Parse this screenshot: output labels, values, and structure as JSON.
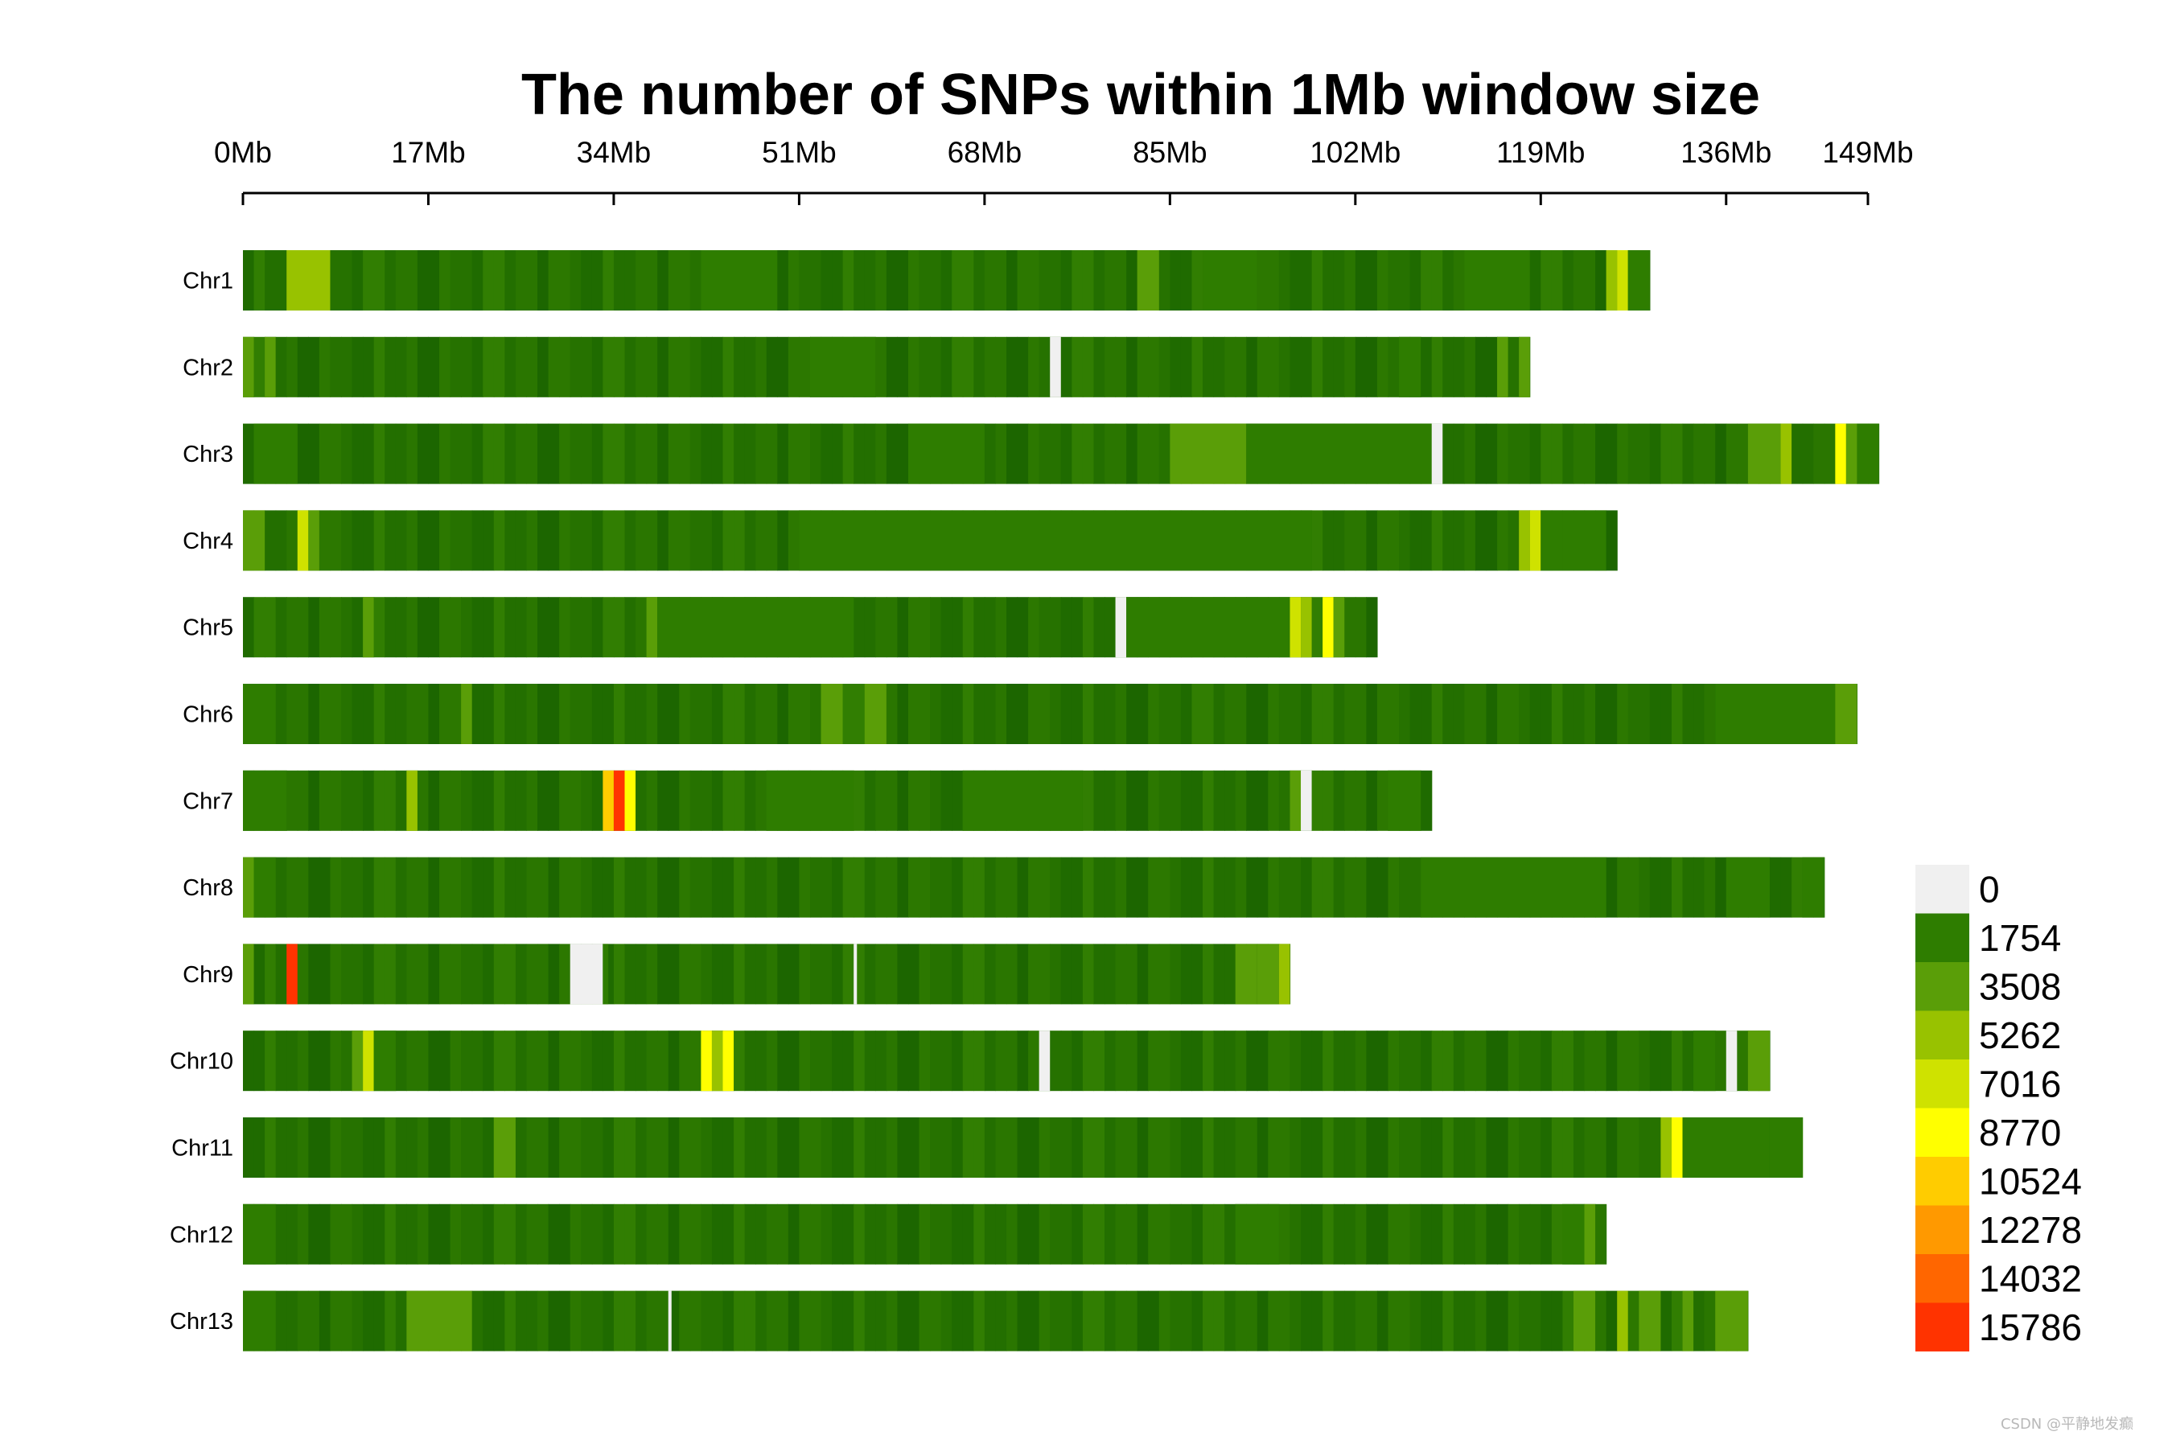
{
  "chart_data": {
    "type": "heatmap",
    "title": "The number of SNPs within 1Mb window size",
    "xlabel": "",
    "ylabel": "",
    "x_unit": "Mb",
    "x_ticks": [
      "0Mb",
      "17Mb",
      "34Mb",
      "51Mb",
      "68Mb",
      "85Mb",
      "102Mb",
      "119Mb",
      "136Mb",
      "149Mb"
    ],
    "x_tick_values": [
      0,
      17,
      34,
      51,
      68,
      85,
      102,
      119,
      136,
      149
    ],
    "xlim": [
      0,
      149
    ],
    "window_size_mb": 1,
    "legend": {
      "position": "right",
      "breaks": [
        0,
        1754,
        3508,
        5262,
        7016,
        8770,
        10524,
        12278,
        14032,
        15786
      ],
      "labels": [
        "0",
        "1754",
        "3508",
        "5262",
        "7016",
        "8770",
        "10524",
        "12278",
        "14032",
        "15786"
      ],
      "colors": [
        "#f0f0f0",
        "#2e7d00",
        "#5a9e08",
        "#98c200",
        "#cfe200",
        "#ffff00",
        "#ffcc00",
        "#ff9900",
        "#ff6600",
        "#ff3300"
      ]
    },
    "chromosomes": [
      {
        "name": "Chr1",
        "length_mb": 129,
        "segments": [
          {
            "start": 4,
            "end": 8,
            "value": 6000
          },
          {
            "start": 42,
            "end": 49,
            "value": 3000
          },
          {
            "start": 82,
            "end": 84,
            "value": 4200
          },
          {
            "start": 88,
            "end": 93,
            "value": 3300
          },
          {
            "start": 112,
            "end": 118,
            "value": 3000
          },
          {
            "start": 125,
            "end": 126,
            "value": 5400
          },
          {
            "start": 126,
            "end": 127,
            "value": 7500
          },
          {
            "start": 127,
            "end": 129,
            "value": 3300
          }
        ]
      },
      {
        "name": "Chr2",
        "length_mb": 118,
        "segments": [
          {
            "start": 0,
            "end": 1,
            "value": 4200
          },
          {
            "start": 2,
            "end": 3,
            "value": 3800
          },
          {
            "start": 52,
            "end": 58,
            "value": 2800
          },
          {
            "start": 74,
            "end": 75,
            "value": 0
          },
          {
            "start": 106,
            "end": 108,
            "value": 3200
          },
          {
            "start": 115,
            "end": 116,
            "value": 5000
          },
          {
            "start": 117,
            "end": 118,
            "value": 4200
          }
        ]
      },
      {
        "name": "Chr3",
        "length_mb": 150,
        "segments": [
          {
            "start": 1,
            "end": 5,
            "value": 3500
          },
          {
            "start": 61,
            "end": 68,
            "value": 3300
          },
          {
            "start": 85,
            "end": 92,
            "value": 5200
          },
          {
            "start": 92,
            "end": 109,
            "value": 3000
          },
          {
            "start": 109,
            "end": 110,
            "value": 0
          },
          {
            "start": 138,
            "end": 141,
            "value": 3800
          },
          {
            "start": 141,
            "end": 142,
            "value": 6500
          },
          {
            "start": 146,
            "end": 147,
            "value": 10000
          },
          {
            "start": 147,
            "end": 148,
            "value": 3600
          },
          {
            "start": 148,
            "end": 150,
            "value": 2900
          }
        ]
      },
      {
        "name": "Chr4",
        "length_mb": 126,
        "segments": [
          {
            "start": 0,
            "end": 2,
            "value": 3800
          },
          {
            "start": 5,
            "end": 6,
            "value": 7500
          },
          {
            "start": 6,
            "end": 7,
            "value": 4500
          },
          {
            "start": 51,
            "end": 98,
            "value": 2950
          },
          {
            "start": 117,
            "end": 118,
            "value": 5500
          },
          {
            "start": 118,
            "end": 119,
            "value": 7200
          },
          {
            "start": 119,
            "end": 121,
            "value": 3400
          },
          {
            "start": 121,
            "end": 125,
            "value": 3100
          }
        ]
      },
      {
        "name": "Chr5",
        "length_mb": 104,
        "segments": [
          {
            "start": 11,
            "end": 12,
            "value": 3600
          },
          {
            "start": 37,
            "end": 38,
            "value": 4800
          },
          {
            "start": 38,
            "end": 56,
            "value": 2900
          },
          {
            "start": 80,
            "end": 81,
            "value": 0
          },
          {
            "start": 81,
            "end": 96,
            "value": 3000
          },
          {
            "start": 96,
            "end": 97,
            "value": 7600
          },
          {
            "start": 97,
            "end": 98,
            "value": 5600
          },
          {
            "start": 99,
            "end": 100,
            "value": 9500
          },
          {
            "start": 100,
            "end": 101,
            "value": 4200
          }
        ]
      },
      {
        "name": "Chr6",
        "length_mb": 148,
        "segments": [
          {
            "start": 0,
            "end": 3,
            "value": 3200
          },
          {
            "start": 20,
            "end": 21,
            "value": 3900
          },
          {
            "start": 53,
            "end": 55,
            "value": 3600
          },
          {
            "start": 57,
            "end": 59,
            "value": 4300
          },
          {
            "start": 135,
            "end": 146,
            "value": 2900
          },
          {
            "start": 146,
            "end": 148,
            "value": 4100
          }
        ]
      },
      {
        "name": "Chr7",
        "length_mb": 109,
        "segments": [
          {
            "start": 0,
            "end": 4,
            "value": 3400
          },
          {
            "start": 15,
            "end": 16,
            "value": 6300
          },
          {
            "start": 33,
            "end": 34,
            "value": 11500
          },
          {
            "start": 34,
            "end": 35,
            "value": 15786
          },
          {
            "start": 35,
            "end": 36,
            "value": 9800
          },
          {
            "start": 48,
            "end": 56,
            "value": 2850
          },
          {
            "start": 66,
            "end": 77,
            "value": 2900
          },
          {
            "start": 96,
            "end": 97,
            "value": 3700
          },
          {
            "start": 97,
            "end": 98,
            "value": 0
          },
          {
            "start": 105,
            "end": 108,
            "value": 3500
          }
        ]
      },
      {
        "name": "Chr8",
        "length_mb": 145,
        "segments": [
          {
            "start": 0,
            "end": 1,
            "value": 4000
          },
          {
            "start": 1,
            "end": 3,
            "value": 3300
          },
          {
            "start": 108,
            "end": 125,
            "value": 2900
          },
          {
            "start": 136,
            "end": 140,
            "value": 3500
          },
          {
            "start": 143,
            "end": 145,
            "value": 3100
          }
        ]
      },
      {
        "name": "Chr9",
        "length_mb": 96,
        "segments": [
          {
            "start": 0,
            "end": 1,
            "value": 3800
          },
          {
            "start": 4,
            "end": 5,
            "value": 15786
          },
          {
            "start": 30,
            "end": 33,
            "value": 0
          },
          {
            "start": 33,
            "end": 33.5,
            "value": 1800
          },
          {
            "start": 56,
            "end": 56.3,
            "value": 0
          },
          {
            "start": 91,
            "end": 93,
            "value": 5000
          },
          {
            "start": 93,
            "end": 95,
            "value": 3800
          },
          {
            "start": 95,
            "end": 96,
            "value": 5300
          }
        ]
      },
      {
        "name": "Chr10",
        "length_mb": 140,
        "segments": [
          {
            "start": 10,
            "end": 11,
            "value": 4200
          },
          {
            "start": 11,
            "end": 12,
            "value": 7400
          },
          {
            "start": 12,
            "end": 14,
            "value": 3300
          },
          {
            "start": 42,
            "end": 43,
            "value": 10500
          },
          {
            "start": 43,
            "end": 44,
            "value": 5600
          },
          {
            "start": 44,
            "end": 45,
            "value": 9000
          },
          {
            "start": 73,
            "end": 74,
            "value": 0
          },
          {
            "start": 133,
            "end": 135,
            "value": 3500
          },
          {
            "start": 136,
            "end": 137,
            "value": 0
          },
          {
            "start": 138,
            "end": 140,
            "value": 4200
          }
        ]
      },
      {
        "name": "Chr11",
        "length_mb": 143,
        "segments": [
          {
            "start": 23,
            "end": 25,
            "value": 3700
          },
          {
            "start": 130,
            "end": 131,
            "value": 6800
          },
          {
            "start": 131,
            "end": 132,
            "value": 10200
          },
          {
            "start": 132,
            "end": 140,
            "value": 3000
          },
          {
            "start": 140,
            "end": 143,
            "value": 3300
          }
        ]
      },
      {
        "name": "Chr12",
        "length_mb": 125,
        "segments": [
          {
            "start": 0,
            "end": 3,
            "value": 3300
          },
          {
            "start": 91,
            "end": 95,
            "value": 3200
          },
          {
            "start": 121,
            "end": 123,
            "value": 3100
          },
          {
            "start": 123,
            "end": 124,
            "value": 4900
          }
        ]
      },
      {
        "name": "Chr13",
        "length_mb": 138,
        "segments": [
          {
            "start": 0,
            "end": 3,
            "value": 3300
          },
          {
            "start": 15,
            "end": 21,
            "value": 4300
          },
          {
            "start": 39,
            "end": 39.3,
            "value": 0
          },
          {
            "start": 122,
            "end": 124,
            "value": 5200
          },
          {
            "start": 126,
            "end": 127,
            "value": 6300
          },
          {
            "start": 128,
            "end": 130,
            "value": 3700
          },
          {
            "start": 132,
            "end": 133,
            "value": 4600
          },
          {
            "start": 135,
            "end": 138,
            "value": 3800
          }
        ]
      }
    ]
  },
  "watermark": "CSDN @平静地发癫"
}
